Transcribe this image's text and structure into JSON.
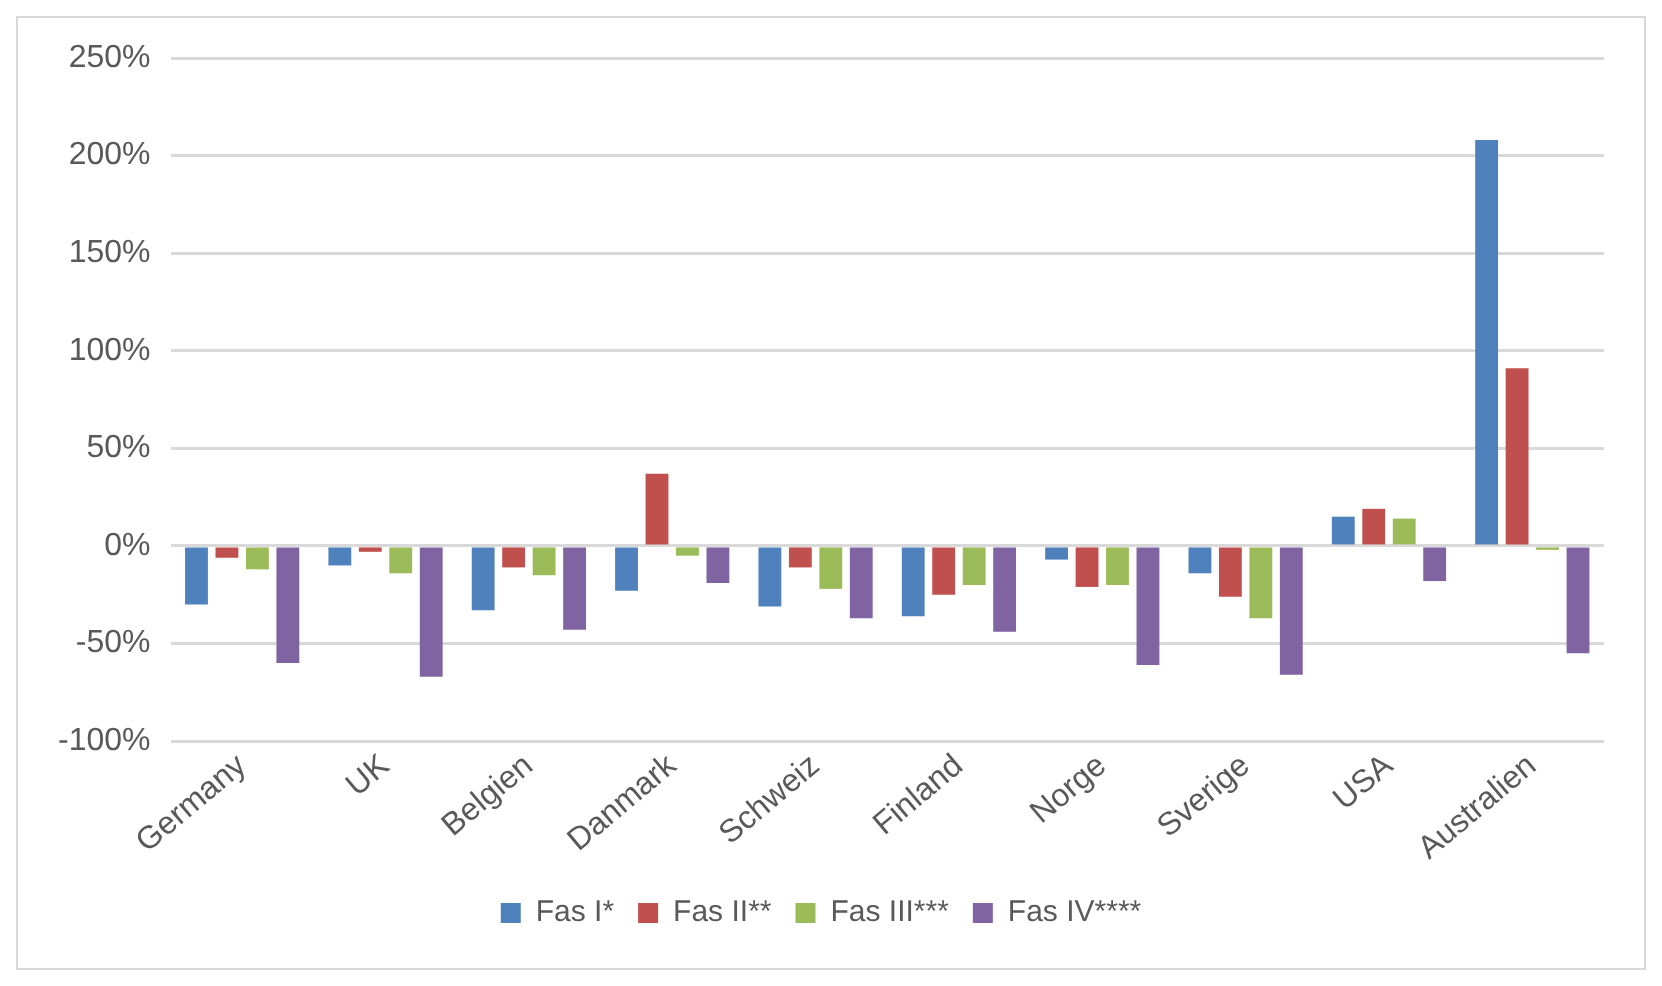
{
  "chart_data": {
    "type": "bar",
    "categories": [
      "Germany",
      "UK",
      "Belgien",
      "Danmark",
      "Schweiz",
      "Finland",
      "Norge",
      "Sverige",
      "USA",
      "Australien"
    ],
    "series": [
      {
        "name": "Fas I*",
        "color": "#4f81bd",
        "values": [
          -30,
          -10,
          -33,
          -23,
          -31,
          -36,
          -7,
          -14,
          15,
          208
        ]
      },
      {
        "name": "Fas II**",
        "color": "#c0504d",
        "values": [
          -6,
          -3,
          -11,
          37,
          -11,
          -25,
          -21,
          -26,
          19,
          91
        ]
      },
      {
        "name": "Fas III***",
        "color": "#9bbb59",
        "values": [
          -12,
          -14,
          -15,
          -5,
          -22,
          -20,
          -20,
          -37,
          14,
          -2
        ]
      },
      {
        "name": "Fas IV****",
        "color": "#8064a2",
        "values": [
          -60,
          -67,
          -43,
          -19,
          -37,
          -44,
          -61,
          -66,
          -18,
          -55
        ]
      }
    ],
    "ylim": [
      -100,
      250
    ],
    "yticks": [
      {
        "value": -100,
        "label": "-100%"
      },
      {
        "value": -50,
        "label": "-50%"
      },
      {
        "value": 0,
        "label": "0%"
      },
      {
        "value": 50,
        "label": "50%"
      },
      {
        "value": 100,
        "label": "100%"
      },
      {
        "value": 150,
        "label": "150%"
      },
      {
        "value": 200,
        "label": "200%"
      },
      {
        "value": 250,
        "label": "250%"
      }
    ],
    "grid": "y",
    "legend": "bottom"
  }
}
